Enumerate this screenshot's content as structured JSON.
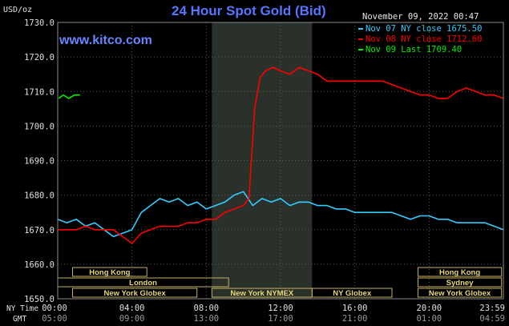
{
  "chart_data": {
    "type": "line",
    "title": "24 Hour Spot Gold (Bid)",
    "watermark": "www.kitco.com",
    "unit_label": "USD/oz",
    "timestamp": "November 09, 2022 00:47",
    "ylim": [
      1650,
      1730
    ],
    "y_ticks": [
      "1730.0",
      "1720.0",
      "1710.0",
      "1700.0",
      "1690.0",
      "1680.0",
      "1670.0",
      "1660.0",
      "1650.0"
    ],
    "y_tick_values": [
      1730,
      1720,
      1710,
      1700,
      1690,
      1680,
      1670,
      1660,
      1650
    ],
    "x_range_hours": [
      0,
      24
    ],
    "ny_time_label": "NY Time",
    "gmt_label": "GMT",
    "ny_ticks": [
      "00:00",
      "04:00",
      "08:00",
      "12:00",
      "16:00",
      "20:00",
      "23:59"
    ],
    "gmt_ticks": [
      "05:00",
      "09:00",
      "13:00",
      "17:00",
      "21:00",
      "01:00",
      "04:59"
    ],
    "tick_hours": [
      0,
      4,
      8,
      12,
      16,
      20,
      24
    ],
    "shaded_hours": [
      8.3,
      13.7
    ],
    "grid": true,
    "legend": [
      {
        "label": "Nov 07 NY close 1675.50",
        "color": "#33ccff"
      },
      {
        "label": "Nov 08 NY close 1712.60",
        "color": "#ff0000"
      },
      {
        "label": "Nov 09 Last 1709.40",
        "color": "#00ee00"
      }
    ],
    "series": [
      {
        "color": "#33ccff",
        "x": [
          0,
          0.5,
          1,
          1.5,
          2,
          2.5,
          3,
          3.5,
          4,
          4.5,
          5,
          5.5,
          6,
          6.5,
          7,
          7.5,
          8,
          8.5,
          9,
          9.5,
          10,
          10.5,
          11,
          11.5,
          12,
          12.5,
          13,
          13.5,
          14,
          14.5,
          15,
          15.5,
          16,
          16.5,
          17,
          17.5,
          18,
          18.5,
          19,
          19.5,
          20,
          20.5,
          21,
          21.5,
          22,
          22.5,
          23,
          23.5,
          24
        ],
        "y": [
          1673,
          1672,
          1673,
          1671,
          1672,
          1670,
          1668,
          1669,
          1670,
          1675,
          1677,
          1679,
          1678,
          1679,
          1677,
          1678,
          1676,
          1677,
          1678,
          1680,
          1681,
          1677,
          1679,
          1678,
          1679,
          1677,
          1678,
          1678,
          1677,
          1677,
          1676,
          1676,
          1675,
          1675,
          1675,
          1675,
          1675,
          1674,
          1673,
          1674,
          1674,
          1673,
          1673,
          1672,
          1672,
          1672,
          1672,
          1671,
          1670
        ]
      },
      {
        "color": "#ff0000",
        "x": [
          0,
          0.5,
          1,
          1.5,
          2,
          2.5,
          3,
          3.5,
          4,
          4.5,
          5,
          5.5,
          6,
          6.5,
          7,
          7.5,
          8,
          8.5,
          9,
          9.5,
          10,
          10.3,
          10.6,
          10.9,
          11.2,
          11.6,
          12,
          12.5,
          13,
          13.5,
          14,
          14.5,
          15,
          15.5,
          16,
          16.5,
          17,
          17.5,
          18,
          18.5,
          19,
          19.5,
          20,
          20.5,
          21,
          21.5,
          22,
          22.5,
          23,
          23.5,
          24
        ],
        "y": [
          1670,
          1670,
          1670,
          1671,
          1670,
          1670,
          1670,
          1668,
          1666,
          1669,
          1670,
          1671,
          1671,
          1671,
          1672,
          1672,
          1673,
          1673,
          1675,
          1676,
          1677,
          1679,
          1705,
          1714,
          1716,
          1717,
          1716,
          1715,
          1717,
          1716,
          1715,
          1713,
          1713,
          1713,
          1713,
          1713,
          1713,
          1713,
          1712,
          1711,
          1710,
          1709,
          1709,
          1708,
          1708,
          1710,
          1711,
          1710,
          1709,
          1709,
          1708
        ]
      },
      {
        "color": "#00ee00",
        "x": [
          0.05,
          0.3,
          0.6,
          0.9,
          1.2
        ],
        "y": [
          1708,
          1709,
          1708,
          1709,
          1709
        ]
      }
    ],
    "sessions": [
      {
        "name": "Hong Kong",
        "start": 0.8,
        "end": 4.8,
        "row": 0
      },
      {
        "name": "Hong Kong",
        "start": 19.4,
        "end": 23.9,
        "row": 0
      },
      {
        "name": "London",
        "start": 0.0,
        "end": 9.2,
        "row": 1
      },
      {
        "name": "Sydney",
        "start": 19.4,
        "end": 23.9,
        "row": 2
      },
      {
        "name": "New York Globex",
        "start": 0.8,
        "end": 7.5,
        "row": 3
      },
      {
        "name": "New York NYMEX",
        "start": 8.3,
        "end": 13.7,
        "row": 3
      },
      {
        "name": "NY Globex",
        "start": 13.7,
        "end": 18.0,
        "row": 3
      },
      {
        "name": "New York Globex",
        "start": 19.4,
        "end": 23.9,
        "row": 3
      }
    ]
  }
}
